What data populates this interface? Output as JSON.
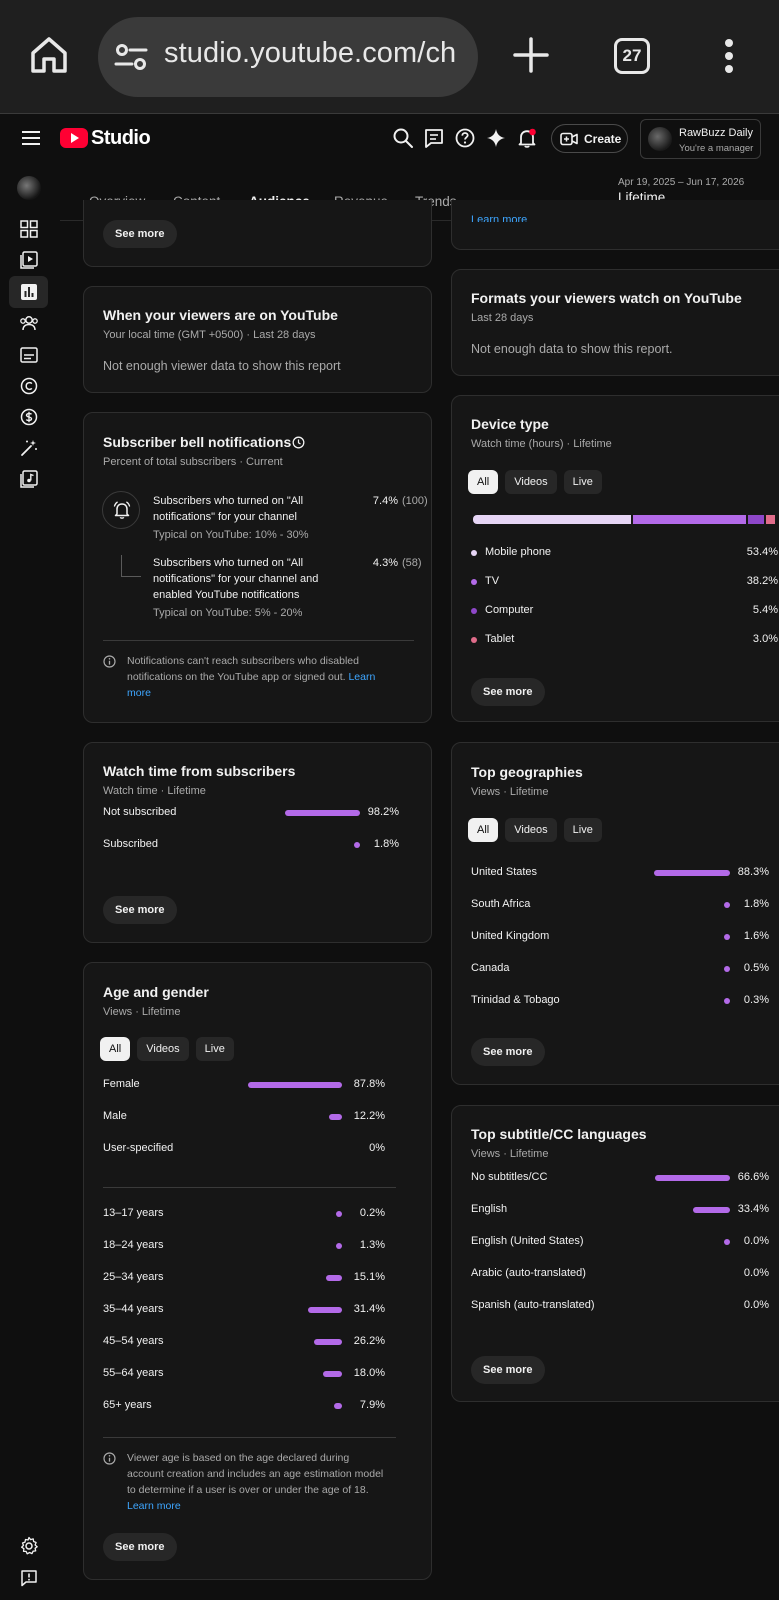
{
  "browser": {
    "url": "studio.youtube.com/ch",
    "tab_count": "27"
  },
  "header": {
    "logo_text": "Studio",
    "create_label": "Create",
    "account_name": "RawBuzz Daily",
    "account_role": "You're a manager"
  },
  "tabs": [
    {
      "label": "Overview"
    },
    {
      "label": "Content"
    },
    {
      "label": "Audience"
    },
    {
      "label": "Revenue"
    },
    {
      "label": "Trends"
    }
  ],
  "active_tab": "Audience",
  "date": {
    "range": "Apr 19, 2025 – Jun 17, 2026",
    "label": "Lifetime"
  },
  "common": {
    "see_more": "See more",
    "learn_more": "Learn more",
    "chip_all": "All",
    "chip_videos": "Videos",
    "chip_live": "Live"
  },
  "viewers_on_youtube": {
    "title": "When your viewers are on YouTube",
    "subtitle": "Your local time (GMT +0500) · Last 28 days",
    "empty": "Not enough viewer data to show this report"
  },
  "bell": {
    "title": "Subscriber bell notifications",
    "subtitle": "Percent of total subscribers · Current",
    "item1_text": "Subscribers who turned on \"All notifications\" for your channel",
    "item1_typical": "Typical on YouTube: 10% - 30%",
    "item1_value": "7.4%",
    "item1_count": "(100)",
    "item2_text": "Subscribers who turned on \"All notifications\" for your channel and enabled YouTube notifications",
    "item2_typical": "Typical on YouTube: 5% - 20%",
    "item2_value": "4.3%",
    "item2_count": "(58)",
    "info": "Notifications can't reach subscribers who disabled notifications on the YouTube app or signed out.",
    "info_link": "Learn more"
  },
  "watch_subscribers": {
    "title": "Watch time from subscribers",
    "subtitle": "Watch time · Lifetime",
    "rows": [
      {
        "label": "Not subscribed",
        "value": "98.2%",
        "pct": 98.2
      },
      {
        "label": "Subscribed",
        "value": "1.8%",
        "pct": 1.8
      }
    ]
  },
  "age_gender": {
    "title": "Age and gender",
    "subtitle": "Views · Lifetime",
    "gender": [
      {
        "label": "Female",
        "value": "87.8%",
        "pct": 87.8
      },
      {
        "label": "Male",
        "value": "12.2%",
        "pct": 12.2
      },
      {
        "label": "User-specified",
        "value": "0%",
        "pct": 0
      }
    ],
    "ages": [
      {
        "label": "13–17 years",
        "value": "0.2%",
        "pct": 0.2
      },
      {
        "label": "18–24 years",
        "value": "1.3%",
        "pct": 1.3
      },
      {
        "label": "25–34 years",
        "value": "15.1%",
        "pct": 15.1
      },
      {
        "label": "35–44 years",
        "value": "31.4%",
        "pct": 31.4
      },
      {
        "label": "45–54 years",
        "value": "26.2%",
        "pct": 26.2
      },
      {
        "label": "55–64 years",
        "value": "18.0%",
        "pct": 18.0
      },
      {
        "label": "65+ years",
        "value": "7.9%",
        "pct": 7.9
      }
    ],
    "info": "Viewer age is based on the age declared during account creation and includes an age estimation model to determine if a user is over or under the age of 18.",
    "info_link": "Learn more"
  },
  "formats": {
    "title": "Formats your viewers watch on YouTube",
    "subtitle": "Last 28 days",
    "empty": "Not enough data to show this report."
  },
  "device": {
    "title": "Device type",
    "subtitle": "Watch time (hours) · Lifetime",
    "rows": [
      {
        "label": "Mobile phone",
        "value": "53.4%",
        "pct": 53.4,
        "color": "#e6d5f5"
      },
      {
        "label": "TV",
        "value": "38.2%",
        "pct": 38.2,
        "color": "#b36ae8"
      },
      {
        "label": "Computer",
        "value": "5.4%",
        "pct": 5.4,
        "color": "#8e47c9"
      },
      {
        "label": "Tablet",
        "value": "3.0%",
        "pct": 3.0,
        "color": "#e06c8a"
      }
    ]
  },
  "geographies": {
    "title": "Top geographies",
    "subtitle": "Views · Lifetime",
    "rows": [
      {
        "label": "United States",
        "value": "88.3%",
        "pct": 88.3
      },
      {
        "label": "South Africa",
        "value": "1.8%",
        "pct": 1.8
      },
      {
        "label": "United Kingdom",
        "value": "1.6%",
        "pct": 1.6
      },
      {
        "label": "Canada",
        "value": "0.5%",
        "pct": 0.5
      },
      {
        "label": "Trinidad & Tobago",
        "value": "0.3%",
        "pct": 0.3
      }
    ]
  },
  "subtitles": {
    "title": "Top subtitle/CC languages",
    "subtitle": "Views · Lifetime",
    "rows": [
      {
        "label": "No subtitles/CC",
        "value": "66.6%",
        "pct": 66.6
      },
      {
        "label": "English",
        "value": "33.4%",
        "pct": 33.4
      },
      {
        "label": "English (United States)",
        "value": "0.0%",
        "pct": 0.01
      },
      {
        "label": "Arabic (auto-translated)",
        "value": "0.0%",
        "pct": 0
      },
      {
        "label": "Spanish (auto-translated)",
        "value": "0.0%",
        "pct": 0
      }
    ]
  }
}
